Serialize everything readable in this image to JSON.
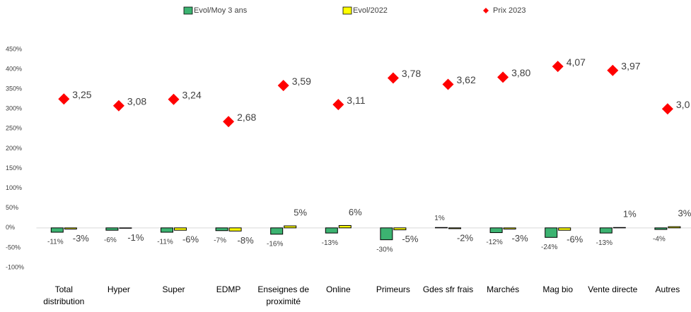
{
  "chart_data": {
    "type": "bar",
    "categories": [
      "Total distribution",
      "Hyper",
      "Super",
      "EDMP",
      "Enseignes de proximité",
      "Online",
      "Primeurs",
      "Gdes sfr frais",
      "Marchés",
      "Mag bio",
      "Vente directe",
      "Autres"
    ],
    "series": [
      {
        "name": "Evol/Moy  3 ans",
        "type": "bar",
        "color": "#3cb371",
        "values": [
          -0.11,
          -0.06,
          -0.11,
          -0.07,
          -0.16,
          -0.13,
          -0.3,
          0.01,
          -0.12,
          -0.24,
          -0.13,
          -0.04
        ],
        "value_labels": [
          "-11%",
          "-6%",
          "-11%",
          "-7%",
          "-16%",
          "-13%",
          "-30%",
          "1%",
          "-12%",
          "-24%",
          "-13%",
          "-4%"
        ]
      },
      {
        "name": "Evol/2022",
        "type": "bar",
        "color": "#ffff00",
        "values": [
          -0.03,
          -0.01,
          -0.06,
          -0.08,
          0.05,
          0.06,
          -0.05,
          -0.02,
          -0.03,
          -0.06,
          0.01,
          0.03
        ],
        "value_labels": [
          "-3%",
          "-1%",
          "-6%",
          "-8%",
          "5%",
          "6%",
          "-5%",
          "-2%",
          "-3%",
          "-6%",
          "1%",
          "3%"
        ]
      },
      {
        "name": "Prix 2023",
        "type": "scatter",
        "color": "#ff0000",
        "values": [
          3.25,
          3.08,
          3.24,
          2.68,
          3.59,
          3.11,
          3.78,
          3.62,
          3.8,
          4.07,
          3.97,
          3.0
        ],
        "value_labels": [
          "3,25",
          "3,08",
          "3,24",
          "2,68",
          "3,59",
          "3,11",
          "3,78",
          "3,62",
          "3,80",
          "4,07",
          "3,97",
          "3,0"
        ]
      }
    ],
    "ylim": [
      -1,
      4.5
    ],
    "yticks": [
      {
        "value": -1,
        "label": "-100%"
      },
      {
        "value": -0.5,
        "label": "-50%"
      },
      {
        "value": 0,
        "label": "0%"
      },
      {
        "value": 0.5,
        "label": "50%"
      },
      {
        "value": 1,
        "label": "100%"
      },
      {
        "value": 1.5,
        "label": "150%"
      },
      {
        "value": 2,
        "label": "200%"
      },
      {
        "value": 2.5,
        "label": "250%"
      },
      {
        "value": 3,
        "label": "300%"
      },
      {
        "value": 3.5,
        "label": "350%"
      },
      {
        "value": 4,
        "label": "400%"
      },
      {
        "value": 4.5,
        "label": "450%"
      }
    ],
    "grid": false,
    "legend": "top"
  }
}
